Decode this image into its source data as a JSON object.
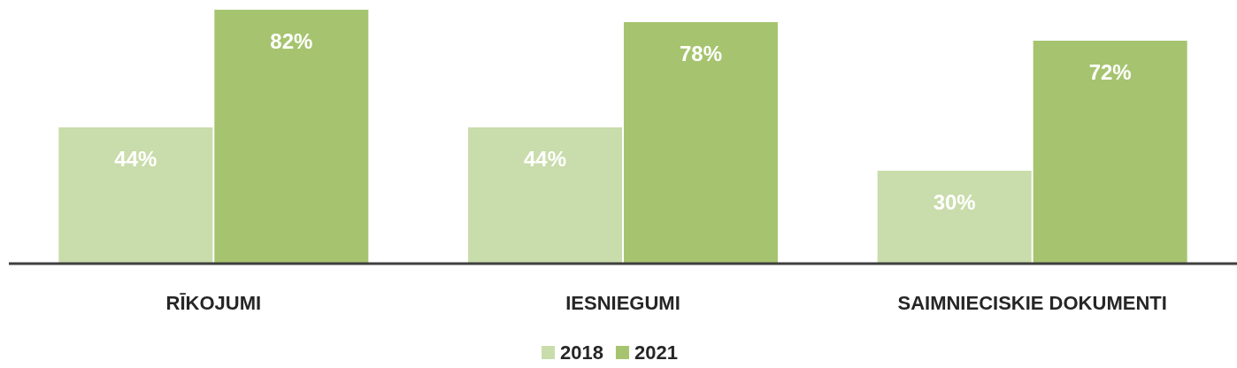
{
  "chart_data": {
    "type": "bar",
    "categories": [
      "RĪKOJUMI",
      "IESNIEGUMI",
      "SAIMNIECISKIE DOKUMENTI"
    ],
    "series": [
      {
        "name": "2018",
        "color": "#c9dcab",
        "values": [
          44,
          44,
          30
        ],
        "value_labels": [
          "44%",
          "44%",
          "30%"
        ]
      },
      {
        "name": "2021",
        "color": "#a6c46f",
        "values": [
          82,
          78,
          72
        ],
        "value_labels": [
          "82%",
          "78%",
          "72%"
        ]
      }
    ],
    "legend": "bottom"
  }
}
